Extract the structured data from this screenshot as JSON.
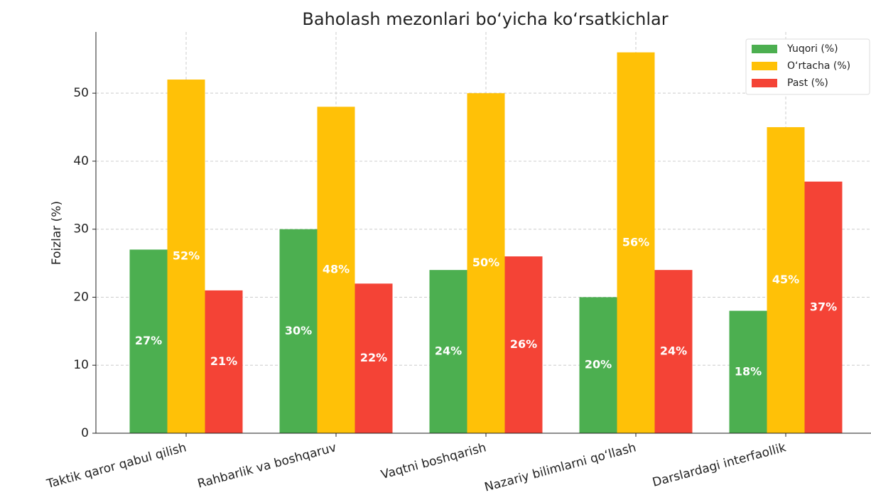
{
  "chart_data": {
    "type": "bar",
    "title": "Baholash mezonlari bo‘yicha ko‘rsatkichlar",
    "ylabel": "Foizlar (%)",
    "categories": [
      "Taktik qaror qabul qilish",
      "Rahbarlik va boshqaruv",
      "Vaqtni boshqarish",
      "Nazariy bilimlarni qo‘llash",
      "Darslardagi interfaollik"
    ],
    "series": [
      {
        "name": "Yuqori (%)",
        "color": "#4caf50",
        "values": [
          27,
          30,
          24,
          20,
          18
        ],
        "value_labels": [
          "27%",
          "30%",
          "24%",
          "20%",
          "18%"
        ]
      },
      {
        "name": "O‘rtacha (%)",
        "color": "#ffc107",
        "values": [
          52,
          48,
          50,
          56,
          45
        ],
        "value_labels": [
          "52%",
          "48%",
          "50%",
          "56%",
          "45%"
        ]
      },
      {
        "name": "Past (%)",
        "color": "#f44336",
        "values": [
          21,
          22,
          26,
          24,
          37
        ],
        "value_labels": [
          "21%",
          "22%",
          "26%",
          "24%",
          "37%"
        ]
      }
    ],
    "ylim": [
      0,
      59
    ],
    "yticks": [
      0,
      10,
      20,
      30,
      40,
      50
    ],
    "grid": true,
    "legend": "upper right"
  }
}
